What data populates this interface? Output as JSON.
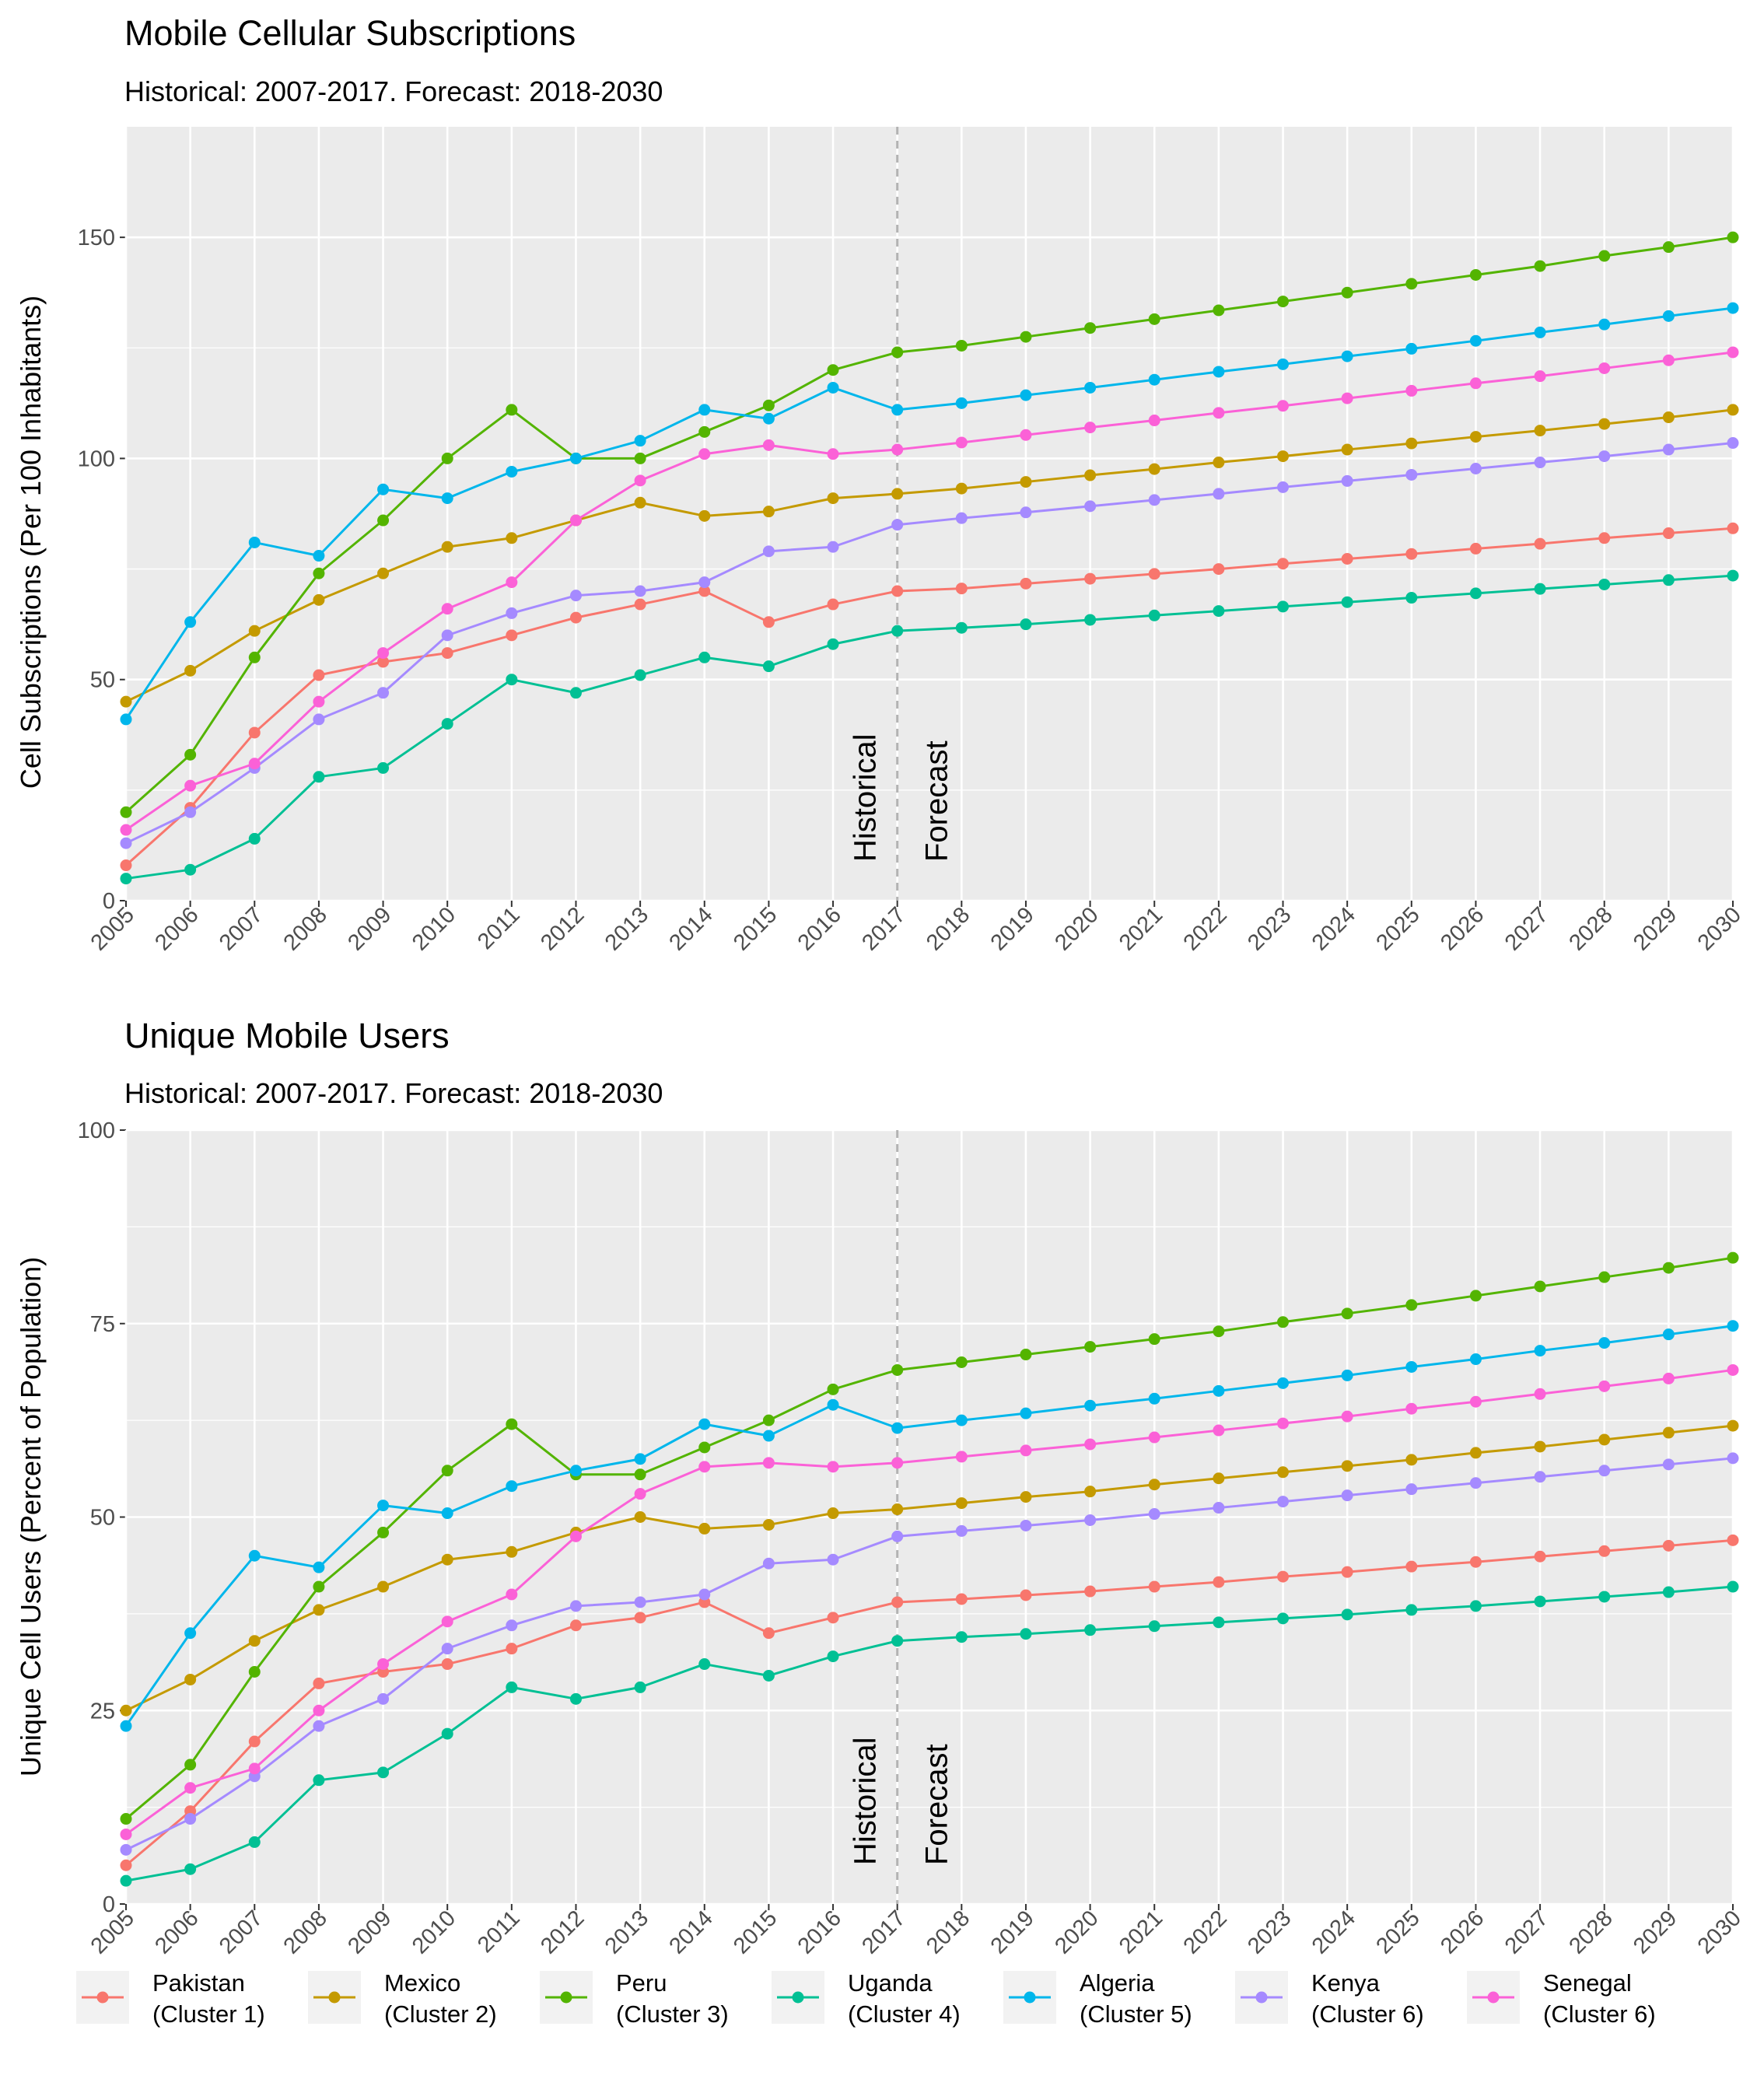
{
  "chart_data": [
    {
      "type": "line",
      "title": "Mobile Cellular Subscriptions",
      "subtitle": "Historical: 2007-2017. Forecast: 2018-2030",
      "xlabel": "",
      "ylabel": "Cell Subscriptions (Per 100 Inhabitants)",
      "xlim": [
        2005,
        2030
      ],
      "ylim": [
        0,
        175
      ],
      "yticks": [
        0,
        50,
        100,
        150
      ],
      "grid": true,
      "divider_x": 2017,
      "annotations": [
        "Historical",
        "Forecast"
      ],
      "x": [
        2005,
        2006,
        2007,
        2008,
        2009,
        2010,
        2011,
        2012,
        2013,
        2014,
        2015,
        2016,
        2017,
        2018,
        2019,
        2020,
        2021,
        2022,
        2023,
        2024,
        2025,
        2026,
        2027,
        2028,
        2029,
        2030
      ],
      "series": [
        {
          "name": "Pakistan\n(Cluster 1)",
          "color": "#F8766D",
          "values": [
            8,
            21,
            38,
            51,
            54,
            56,
            60,
            64,
            67,
            70,
            63,
            67,
            70,
            70.6,
            71.7,
            72.8,
            73.9,
            75,
            76.2,
            77.3,
            78.4,
            79.6,
            80.7,
            82,
            83.1,
            84.2
          ]
        },
        {
          "name": "Mexico\n(Cluster 2)",
          "color": "#C49A00",
          "values": [
            45,
            52,
            61,
            68,
            74,
            80,
            82,
            86,
            90,
            87,
            88,
            91,
            92,
            93.2,
            94.7,
            96.2,
            97.6,
            99.1,
            100.5,
            102,
            103.4,
            104.9,
            106.3,
            107.8,
            109.3,
            111
          ]
        },
        {
          "name": "Peru\n(Cluster 3)",
          "color": "#53B400",
          "values": [
            20,
            33,
            55,
            74,
            86,
            100,
            111,
            100,
            100,
            106,
            112,
            120,
            124,
            125.5,
            127.5,
            129.5,
            131.5,
            133.5,
            135.5,
            137.5,
            139.5,
            141.5,
            143.5,
            145.8,
            147.8,
            150
          ]
        },
        {
          "name": "Uganda\n(Cluster 4)",
          "color": "#00C094",
          "values": [
            5,
            7,
            14,
            28,
            30,
            40,
            50,
            47,
            51,
            55,
            53,
            58,
            61,
            61.7,
            62.5,
            63.5,
            64.5,
            65.5,
            66.5,
            67.5,
            68.5,
            69.5,
            70.5,
            71.5,
            72.5,
            73.5
          ]
        },
        {
          "name": "Algeria\n(Cluster 5)",
          "color": "#00B6EB",
          "values": [
            41,
            63,
            81,
            78,
            93,
            91,
            97,
            100,
            104,
            111,
            109,
            116,
            111,
            112.5,
            114.3,
            116,
            117.8,
            119.6,
            121.3,
            123.1,
            124.8,
            126.6,
            128.5,
            130.3,
            132.2,
            134
          ]
        },
        {
          "name": "Kenya\n(Cluster 6)",
          "color": "#A58AFF",
          "values": [
            13,
            20,
            30,
            41,
            47,
            60,
            65,
            69,
            70,
            72,
            79,
            80,
            85,
            86.5,
            87.8,
            89.2,
            90.6,
            92,
            93.5,
            94.9,
            96.3,
            97.7,
            99.1,
            100.5,
            102,
            103.5
          ]
        },
        {
          "name": "Senegal\n(Cluster 6)",
          "color": "#FB61D7",
          "values": [
            16,
            26,
            31,
            45,
            56,
            66,
            72,
            86,
            95,
            101,
            103,
            101,
            102,
            103.6,
            105.3,
            107,
            108.6,
            110.3,
            111.9,
            113.6,
            115.3,
            117,
            118.6,
            120.4,
            122.2,
            124
          ]
        }
      ]
    },
    {
      "type": "line",
      "title": "Unique Mobile Users",
      "subtitle": "Historical: 2007-2017. Forecast: 2018-2030",
      "xlabel": "",
      "ylabel": "Unique Cell Users (Percent of Population)",
      "xlim": [
        2005,
        2030
      ],
      "ylim": [
        0,
        100
      ],
      "yticks": [
        0,
        25,
        50,
        75,
        100
      ],
      "grid": true,
      "divider_x": 2017,
      "annotations": [
        "Historical",
        "Forecast"
      ],
      "x": [
        2005,
        2006,
        2007,
        2008,
        2009,
        2010,
        2011,
        2012,
        2013,
        2014,
        2015,
        2016,
        2017,
        2018,
        2019,
        2020,
        2021,
        2022,
        2023,
        2024,
        2025,
        2026,
        2027,
        2028,
        2029,
        2030
      ],
      "series": [
        {
          "name": "Pakistan\n(Cluster 1)",
          "color": "#F8766D",
          "values": [
            5,
            12,
            21,
            28.5,
            30,
            31,
            33,
            36,
            37,
            39,
            35,
            37,
            39,
            39.4,
            39.9,
            40.4,
            41,
            41.6,
            42.3,
            42.9,
            43.6,
            44.2,
            44.9,
            45.6,
            46.3,
            47
          ]
        },
        {
          "name": "Mexico\n(Cluster 2)",
          "color": "#C49A00",
          "values": [
            25,
            29,
            34,
            38,
            41,
            44.5,
            45.5,
            48,
            50,
            48.5,
            49,
            50.5,
            51,
            51.8,
            52.6,
            53.3,
            54.2,
            55,
            55.8,
            56.6,
            57.4,
            58.3,
            59.1,
            60,
            60.9,
            61.8
          ]
        },
        {
          "name": "Peru\n(Cluster 3)",
          "color": "#53B400",
          "values": [
            11,
            18,
            30,
            41,
            48,
            56,
            62,
            55.5,
            55.5,
            59,
            62.5,
            66.5,
            69,
            70,
            71,
            72,
            73,
            74,
            75.2,
            76.3,
            77.4,
            78.6,
            79.8,
            81,
            82.2,
            83.5
          ]
        },
        {
          "name": "Uganda\n(Cluster 4)",
          "color": "#00C094",
          "values": [
            3,
            4.5,
            8,
            16,
            17,
            22,
            28,
            26.5,
            28,
            31,
            29.5,
            32,
            34,
            34.5,
            34.9,
            35.4,
            35.9,
            36.4,
            36.9,
            37.4,
            38,
            38.5,
            39.1,
            39.7,
            40.3,
            41
          ]
        },
        {
          "name": "Algeria\n(Cluster 5)",
          "color": "#00B6EB",
          "values": [
            23,
            35,
            45,
            43.5,
            51.5,
            50.5,
            54,
            56,
            57.5,
            62,
            60.5,
            64.5,
            61.5,
            62.5,
            63.4,
            64.4,
            65.3,
            66.3,
            67.3,
            68.3,
            69.4,
            70.4,
            71.5,
            72.5,
            73.6,
            74.7
          ]
        },
        {
          "name": "Kenya\n(Cluster 6)",
          "color": "#A58AFF",
          "values": [
            7,
            11,
            16.5,
            23,
            26.5,
            33,
            36,
            38.5,
            39,
            40,
            44,
            44.5,
            47.5,
            48.2,
            48.9,
            49.6,
            50.4,
            51.2,
            52,
            52.8,
            53.6,
            54.4,
            55.2,
            56,
            56.8,
            57.6
          ]
        },
        {
          "name": "Senegal\n(Cluster 6)",
          "color": "#FB61D7",
          "values": [
            9,
            15,
            17.5,
            25,
            31,
            36.5,
            40,
            47.5,
            53,
            56.5,
            57,
            56.5,
            57,
            57.8,
            58.6,
            59.4,
            60.3,
            61.2,
            62.1,
            63,
            64,
            64.9,
            65.9,
            66.9,
            67.9,
            69
          ]
        }
      ]
    }
  ],
  "legend": [
    {
      "line1": "Pakistan",
      "line2": "(Cluster 1)",
      "color": "#F8766D"
    },
    {
      "line1": "Mexico",
      "line2": "(Cluster 2)",
      "color": "#C49A00"
    },
    {
      "line1": "Peru",
      "line2": "(Cluster 3)",
      "color": "#53B400"
    },
    {
      "line1": "Uganda",
      "line2": "(Cluster 4)",
      "color": "#00C094"
    },
    {
      "line1": "Algeria",
      "line2": "(Cluster 5)",
      "color": "#00B6EB"
    },
    {
      "line1": "Kenya",
      "line2": "(Cluster 6)",
      "color": "#A58AFF"
    },
    {
      "line1": "Senegal",
      "line2": "(Cluster 6)",
      "color": "#FB61D7"
    }
  ]
}
